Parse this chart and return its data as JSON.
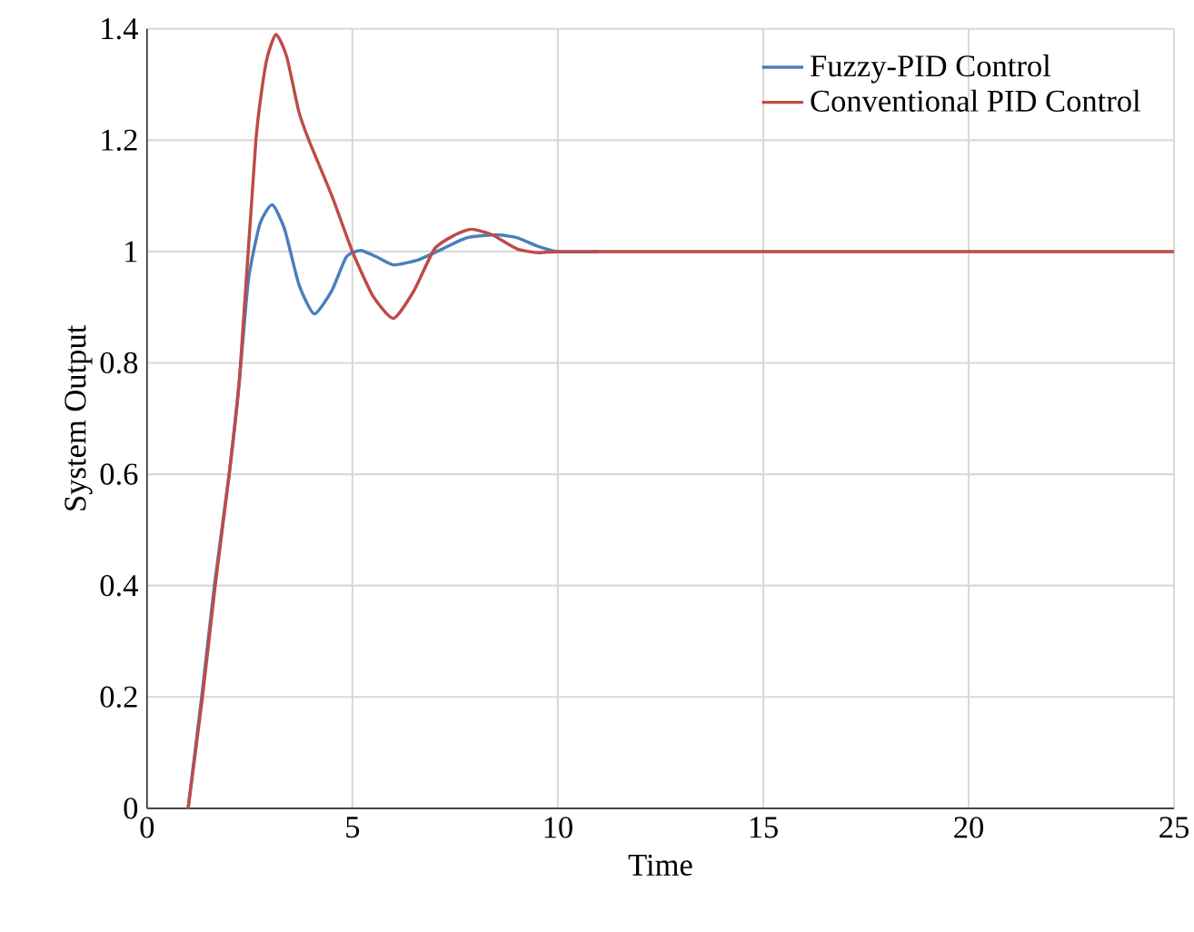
{
  "chart_data": {
    "type": "line",
    "xlabel": "Time",
    "ylabel": "System Output",
    "xlim": [
      0,
      25
    ],
    "xticks": [
      0,
      5,
      10,
      15,
      20,
      25
    ],
    "ylim": [
      0,
      1.4
    ],
    "yticks": [
      0,
      0.2,
      0.4,
      0.6,
      0.8,
      1,
      1.2,
      1.4
    ],
    "grid": true,
    "legend": "top right",
    "marker": "none",
    "line_style": "solid",
    "series": [
      {
        "name": "Fuzzy-PID Control",
        "color": "#4a7ebb",
        "x": [
          1,
          1.33,
          1.64,
          2.0,
          2.25,
          2.47,
          2.75,
          3.05,
          3.35,
          3.7,
          4.07,
          4.5,
          4.85,
          5.2,
          5.6,
          6.0,
          6.6,
          7.2,
          7.8,
          8.5,
          9.0,
          9.5,
          10,
          11
        ],
        "values": [
          0,
          0.2,
          0.4,
          0.6,
          0.77,
          0.95,
          1.05,
          1.084,
          1.04,
          0.94,
          0.888,
          0.93,
          0.99,
          1.002,
          0.99,
          0.976,
          0.985,
          1.005,
          1.025,
          1.03,
          1.025,
          1.01,
          1.0,
          1.0
        ]
      },
      {
        "name": "Conventional PID Control",
        "color": "#be4b48",
        "x": [
          1,
          1.35,
          1.66,
          2.0,
          2.25,
          2.65,
          2.9,
          3.14,
          3.4,
          3.7,
          3.94,
          4.5,
          5.0,
          5.5,
          6.0,
          6.5,
          7.0,
          7.5,
          7.9,
          8.4,
          9.0,
          9.5,
          10,
          11,
          15,
          20,
          25
        ],
        "values": [
          0,
          0.2,
          0.4,
          0.6,
          0.77,
          1.2,
          1.34,
          1.39,
          1.35,
          1.25,
          1.2,
          1.1,
          1.0,
          0.92,
          0.88,
          0.93,
          1.005,
          1.03,
          1.04,
          1.03,
          1.005,
          0.998,
          1.0,
          1.0,
          1.0,
          1.0,
          1.0
        ]
      }
    ]
  }
}
